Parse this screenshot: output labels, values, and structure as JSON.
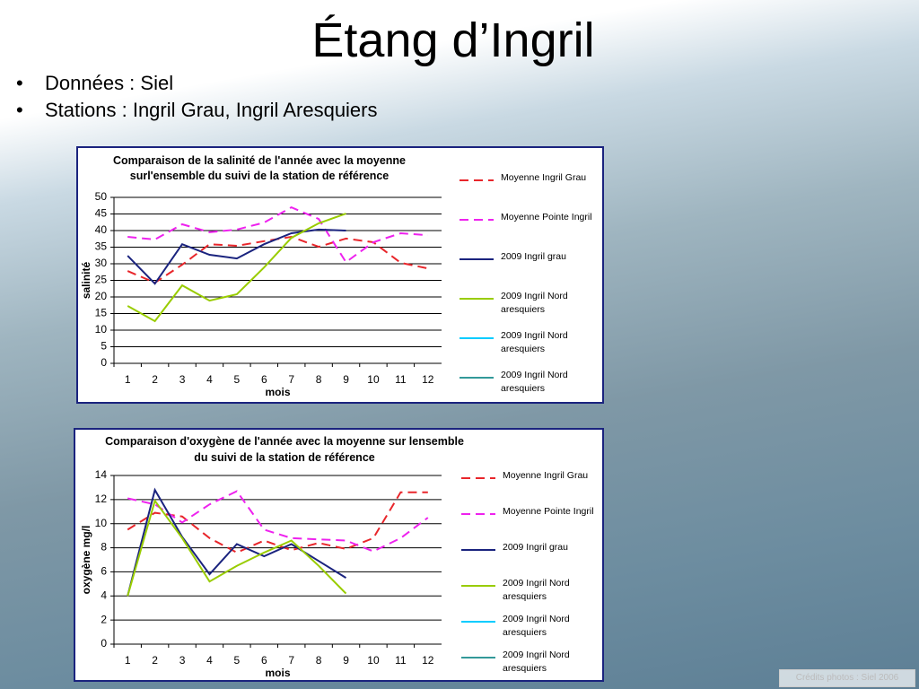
{
  "slide": {
    "title": "Étang d’Ingril",
    "bullets": [
      "Données : Siel",
      "Stations : Ingril Grau, Ingril Aresquiers"
    ],
    "credits": "Crédits photos : Siel 2006"
  },
  "chart_data": [
    {
      "type": "line",
      "title": [
        "Comparaison de la salinité de l'année avec la moyenne",
        "surl'ensemble du suivi de la station de référence"
      ],
      "xlabel": "mois",
      "ylabel": "salinité",
      "categories": [
        1,
        2,
        3,
        4,
        5,
        6,
        7,
        8,
        9,
        10,
        11,
        12
      ],
      "ylim": [
        0,
        50
      ],
      "yticks": [
        0,
        5,
        10,
        15,
        20,
        25,
        30,
        35,
        40,
        45,
        50
      ],
      "grid": true,
      "legend": "right",
      "series": [
        {
          "name": "Moyenne Ingril Grau",
          "color": "#e8262b",
          "style": "dashed",
          "values": [
            27.8,
            24.3,
            29.7,
            35.9,
            35.4,
            36.8,
            38.1,
            35.1,
            37.6,
            36.5,
            30.3,
            28.6
          ]
        },
        {
          "name": "Moyenne  Pointe Ingril",
          "color": "#ee22ee",
          "style": "dashed",
          "values": [
            38.1,
            37.3,
            41.9,
            39.5,
            40.3,
            42.4,
            47,
            43.5,
            30.5,
            36.5,
            39.2,
            38.6
          ]
        },
        {
          "name": "2009 Ingril grau",
          "color": "#1a237e",
          "style": "solid",
          "values": [
            32.4,
            24,
            35.9,
            32.7,
            31.6,
            35.9,
            39.2,
            40.3,
            40,
            null,
            null,
            null
          ]
        },
        {
          "name": "2009 Ingril Nord aresquiers",
          "color": "#99cc00",
          "style": "solid",
          "values": [
            17.3,
            12.7,
            23.5,
            18.9,
            20.8,
            28.9,
            37.8,
            42.2,
            45.1,
            null,
            null,
            null
          ]
        },
        {
          "name": "2009 Ingril Nord aresquiers",
          "color": "#00ccff",
          "style": "solid",
          "values": [
            null,
            null,
            null,
            null,
            null,
            null,
            null,
            null,
            null,
            null,
            null,
            null
          ]
        },
        {
          "name": "2009 Ingril Nord aresquiers",
          "color": "#339999",
          "style": "solid",
          "values": [
            null,
            null,
            null,
            null,
            null,
            null,
            null,
            null,
            null,
            null,
            null,
            null
          ]
        }
      ]
    },
    {
      "type": "line",
      "title": [
        "Comparaison d'oxygène de l'année avec la moyenne sur lensemble",
        "du suivi de la station de référence"
      ],
      "xlabel": "mois",
      "ylabel": "oxygène mg/l",
      "categories": [
        1,
        2,
        3,
        4,
        5,
        6,
        7,
        8,
        9,
        10,
        11,
        12
      ],
      "ylim": [
        0,
        14
      ],
      "yticks": [
        0,
        2,
        4,
        6,
        8,
        10,
        12,
        14
      ],
      "grid": true,
      "legend": "right",
      "series": [
        {
          "name": "Moyenne Ingril Grau",
          "color": "#e8262b",
          "style": "dashed",
          "values": [
            9.5,
            10.9,
            10.6,
            8.8,
            7.6,
            8.6,
            7.8,
            8.4,
            7.9,
            8.8,
            12.6,
            12.6
          ]
        },
        {
          "name": "Moyenne Pointe Ingril",
          "color": "#ee22ee",
          "style": "dashed",
          "values": [
            12.1,
            11.6,
            10.1,
            11.6,
            12.7,
            9.5,
            8.8,
            8.7,
            8.6,
            7.7,
            8.8,
            10.5
          ]
        },
        {
          "name": "2009 Ingril grau",
          "color": "#1a237e",
          "style": "solid",
          "values": [
            4.0,
            12.8,
            8.9,
            5.8,
            8.3,
            7.3,
            8.3,
            6.9,
            5.5,
            null,
            null,
            null
          ]
        },
        {
          "name": "2009 Ingril Nord aresquiers",
          "color": "#99cc00",
          "style": "solid",
          "values": [
            4.0,
            11.9,
            8.8,
            5.2,
            6.5,
            7.6,
            8.6,
            6.5,
            4.2,
            null,
            null,
            null
          ]
        },
        {
          "name": "2009 Ingril Nord aresquiers",
          "color": "#00ccff",
          "style": "solid",
          "values": [
            null,
            null,
            null,
            null,
            null,
            null,
            null,
            null,
            null,
            null,
            null,
            null
          ]
        },
        {
          "name": "2009 Ingril Nord aresquiers",
          "color": "#339999",
          "style": "solid",
          "values": [
            null,
            null,
            null,
            null,
            null,
            null,
            null,
            null,
            null,
            null,
            null,
            null
          ]
        }
      ]
    }
  ]
}
